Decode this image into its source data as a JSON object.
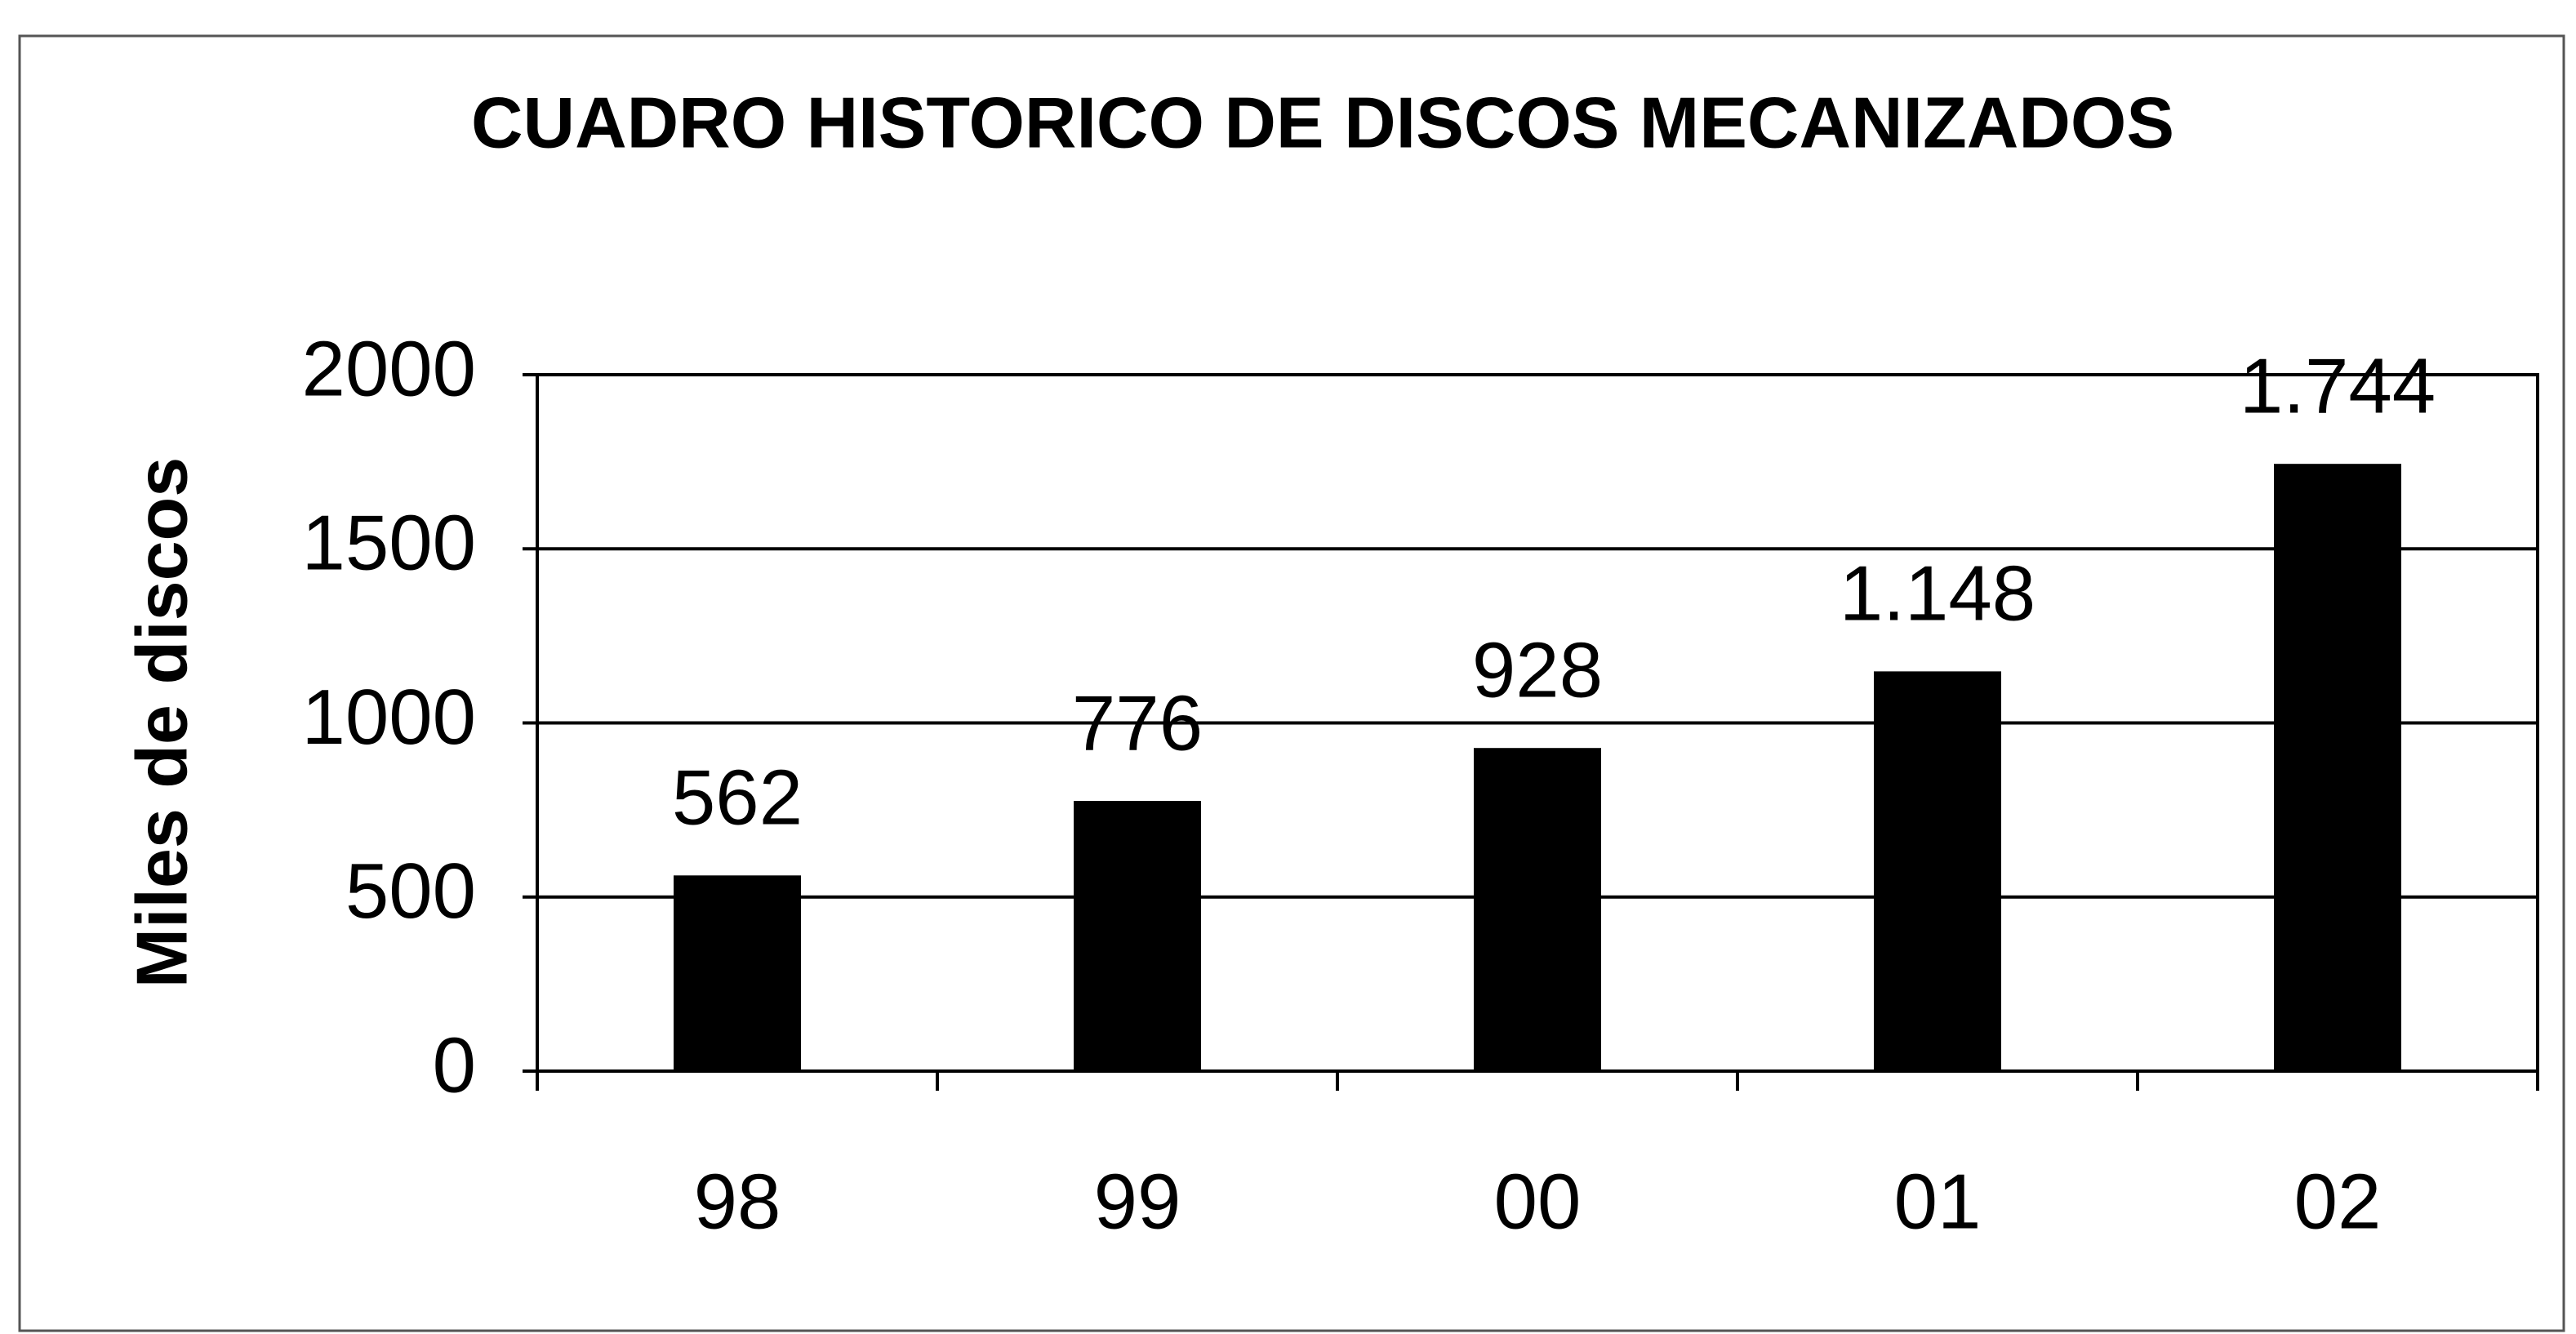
{
  "chart_data": {
    "type": "bar",
    "title": "CUADRO HISTORICO DE DISCOS MECANIZADOS",
    "ylabel": "Miles de discos",
    "categories": [
      "98",
      "99",
      "00",
      "01",
      "02"
    ],
    "values": [
      562,
      776,
      928,
      1148,
      1744
    ],
    "value_labels": [
      "562",
      "776",
      "928",
      "1.148",
      "1.744"
    ],
    "color": "#000000",
    "ylim": [
      0,
      2000
    ],
    "yticks": [
      0,
      500,
      1000,
      1500,
      2000
    ],
    "grid": true
  }
}
